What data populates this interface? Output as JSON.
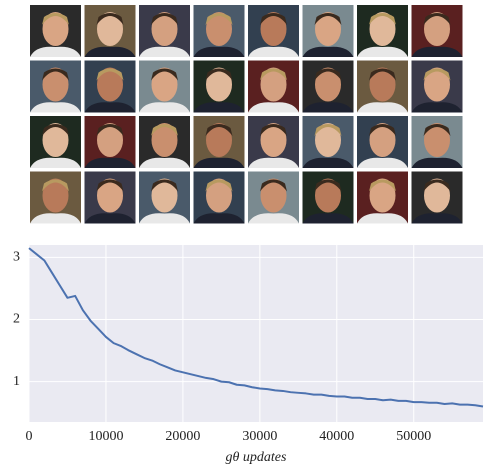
{
  "chart_data": {
    "type": "line",
    "xlabel": "gθ updates",
    "x": [
      0,
      1000,
      2000,
      3000,
      4000,
      5000,
      6000,
      7000,
      8000,
      9000,
      10000,
      11000,
      12000,
      13000,
      14000,
      15000,
      16000,
      17000,
      18000,
      19000,
      20000,
      21000,
      22000,
      23000,
      24000,
      25000,
      26000,
      27000,
      28000,
      29000,
      30000,
      31000,
      32000,
      33000,
      34000,
      35000,
      36000,
      37000,
      38000,
      39000,
      40000,
      41000,
      42000,
      43000,
      44000,
      45000,
      46000,
      47000,
      48000,
      49000,
      50000,
      51000,
      52000,
      53000,
      54000,
      55000,
      56000,
      57000,
      58000,
      59000
    ],
    "series": [
      {
        "color": "#4c72b0",
        "values": [
          3.15,
          3.05,
          2.95,
          2.75,
          2.55,
          2.35,
          2.38,
          2.15,
          1.98,
          1.85,
          1.72,
          1.62,
          1.57,
          1.5,
          1.44,
          1.38,
          1.34,
          1.28,
          1.23,
          1.18,
          1.15,
          1.12,
          1.09,
          1.06,
          1.04,
          1.0,
          0.99,
          0.95,
          0.94,
          0.91,
          0.89,
          0.88,
          0.86,
          0.85,
          0.83,
          0.82,
          0.81,
          0.79,
          0.79,
          0.77,
          0.76,
          0.76,
          0.74,
          0.74,
          0.72,
          0.72,
          0.7,
          0.71,
          0.69,
          0.69,
          0.67,
          0.67,
          0.66,
          0.66,
          0.64,
          0.65,
          0.63,
          0.63,
          0.62,
          0.6
        ]
      }
    ],
    "xlim": [
      0,
      59000
    ],
    "xticks": [
      0,
      10000,
      20000,
      30000,
      40000,
      50000
    ],
    "ylim": [
      0.35,
      3.2
    ],
    "yticks": [
      1,
      2,
      3
    ],
    "grid": true
  }
}
